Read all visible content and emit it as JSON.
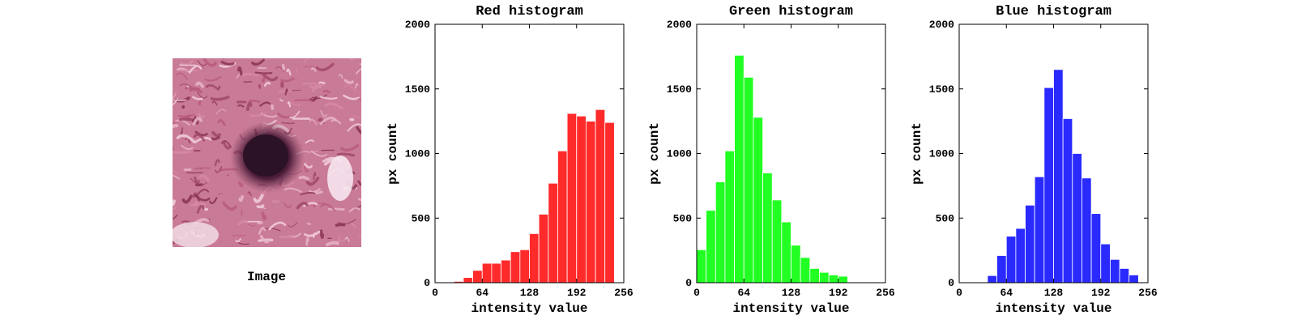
{
  "image_panel": {
    "caption": "Image"
  },
  "chart_data": [
    {
      "type": "bar",
      "title": "Red histogram",
      "xlabel": "intensity value",
      "ylabel": "px count",
      "color": "#ff2a2a",
      "xlim": [
        0,
        256
      ],
      "ylim": [
        0,
        2000
      ],
      "xticks": [
        0,
        64,
        128,
        192,
        256
      ],
      "yticks": [
        0,
        500,
        1000,
        1500,
        2000
      ],
      "bin_width": 12.8,
      "bin_starts": [
        0,
        12.8,
        25.6,
        38.4,
        51.2,
        64,
        76.8,
        89.6,
        102.4,
        115.2,
        128,
        140.8,
        153.6,
        166.4,
        179.2,
        192,
        204.8,
        217.6,
        230.4,
        243.2
      ],
      "values": [
        0,
        0,
        10,
        40,
        95,
        150,
        150,
        175,
        240,
        255,
        380,
        530,
        770,
        1020,
        1310,
        1290,
        1250,
        1340,
        1240,
        0
      ]
    },
    {
      "type": "bar",
      "title": "Green histogram",
      "xlabel": "intensity value",
      "ylabel": "px count",
      "color": "#22ff22",
      "xlim": [
        0,
        256
      ],
      "ylim": [
        0,
        2000
      ],
      "xticks": [
        0,
        64,
        128,
        192,
        256
      ],
      "yticks": [
        0,
        500,
        1000,
        1500,
        2000
      ],
      "bin_width": 12.8,
      "bin_starts": [
        0,
        12.8,
        25.6,
        38.4,
        51.2,
        64,
        76.8,
        89.6,
        102.4,
        115.2,
        128,
        140.8,
        153.6,
        166.4,
        179.2,
        192,
        204.8,
        217.6,
        230.4,
        243.2
      ],
      "values": [
        255,
        560,
        780,
        1020,
        1760,
        1590,
        1280,
        850,
        640,
        470,
        290,
        195,
        110,
        80,
        60,
        50,
        0,
        0,
        0,
        0
      ]
    },
    {
      "type": "bar",
      "title": "Blue histogram",
      "xlabel": "intensity value",
      "ylabel": "px count",
      "color": "#2a2aff",
      "xlim": [
        0,
        256
      ],
      "ylim": [
        0,
        2000
      ],
      "xticks": [
        0,
        64,
        128,
        192,
        256
      ],
      "yticks": [
        0,
        500,
        1000,
        1500,
        2000
      ],
      "bin_width": 12.8,
      "bin_starts": [
        0,
        12.8,
        25.6,
        38.4,
        51.2,
        64,
        76.8,
        89.6,
        102.4,
        115.2,
        128,
        140.8,
        153.6,
        166.4,
        179.2,
        192,
        204.8,
        217.6,
        230.4,
        243.2
      ],
      "values": [
        0,
        0,
        0,
        55,
        210,
        360,
        420,
        600,
        820,
        1510,
        1650,
        1270,
        1000,
        810,
        535,
        300,
        180,
        110,
        60,
        0
      ]
    }
  ]
}
